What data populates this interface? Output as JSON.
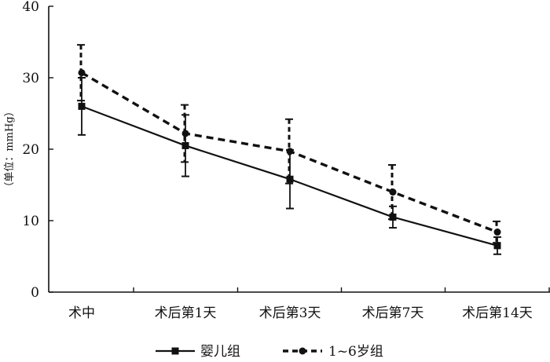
{
  "chart_data": {
    "type": "line",
    "title": "",
    "xlabel": "",
    "ylabel": "（单位：mmHg）",
    "ylim": [
      0,
      40
    ],
    "yticks": [
      0,
      10,
      20,
      30,
      40
    ],
    "categories": [
      "术中",
      "术后第1天",
      "术后第3天",
      "术后第7天",
      "术后第14天"
    ],
    "grid": false,
    "legend": "bottom",
    "series": [
      {
        "name": "婴儿组",
        "style": "solid",
        "marker": "square",
        "color": "#111111",
        "values": [
          26.0,
          20.5,
          15.8,
          10.5,
          6.5
        ],
        "error": [
          4.0,
          4.3,
          4.1,
          1.5,
          1.2
        ]
      },
      {
        "name": "1~6岁组",
        "style": "dashed",
        "marker": "circle",
        "color": "#111111",
        "values": [
          30.7,
          22.2,
          19.7,
          14.0,
          8.4
        ],
        "error": [
          3.9,
          4.0,
          4.5,
          3.8,
          1.5
        ]
      }
    ]
  }
}
